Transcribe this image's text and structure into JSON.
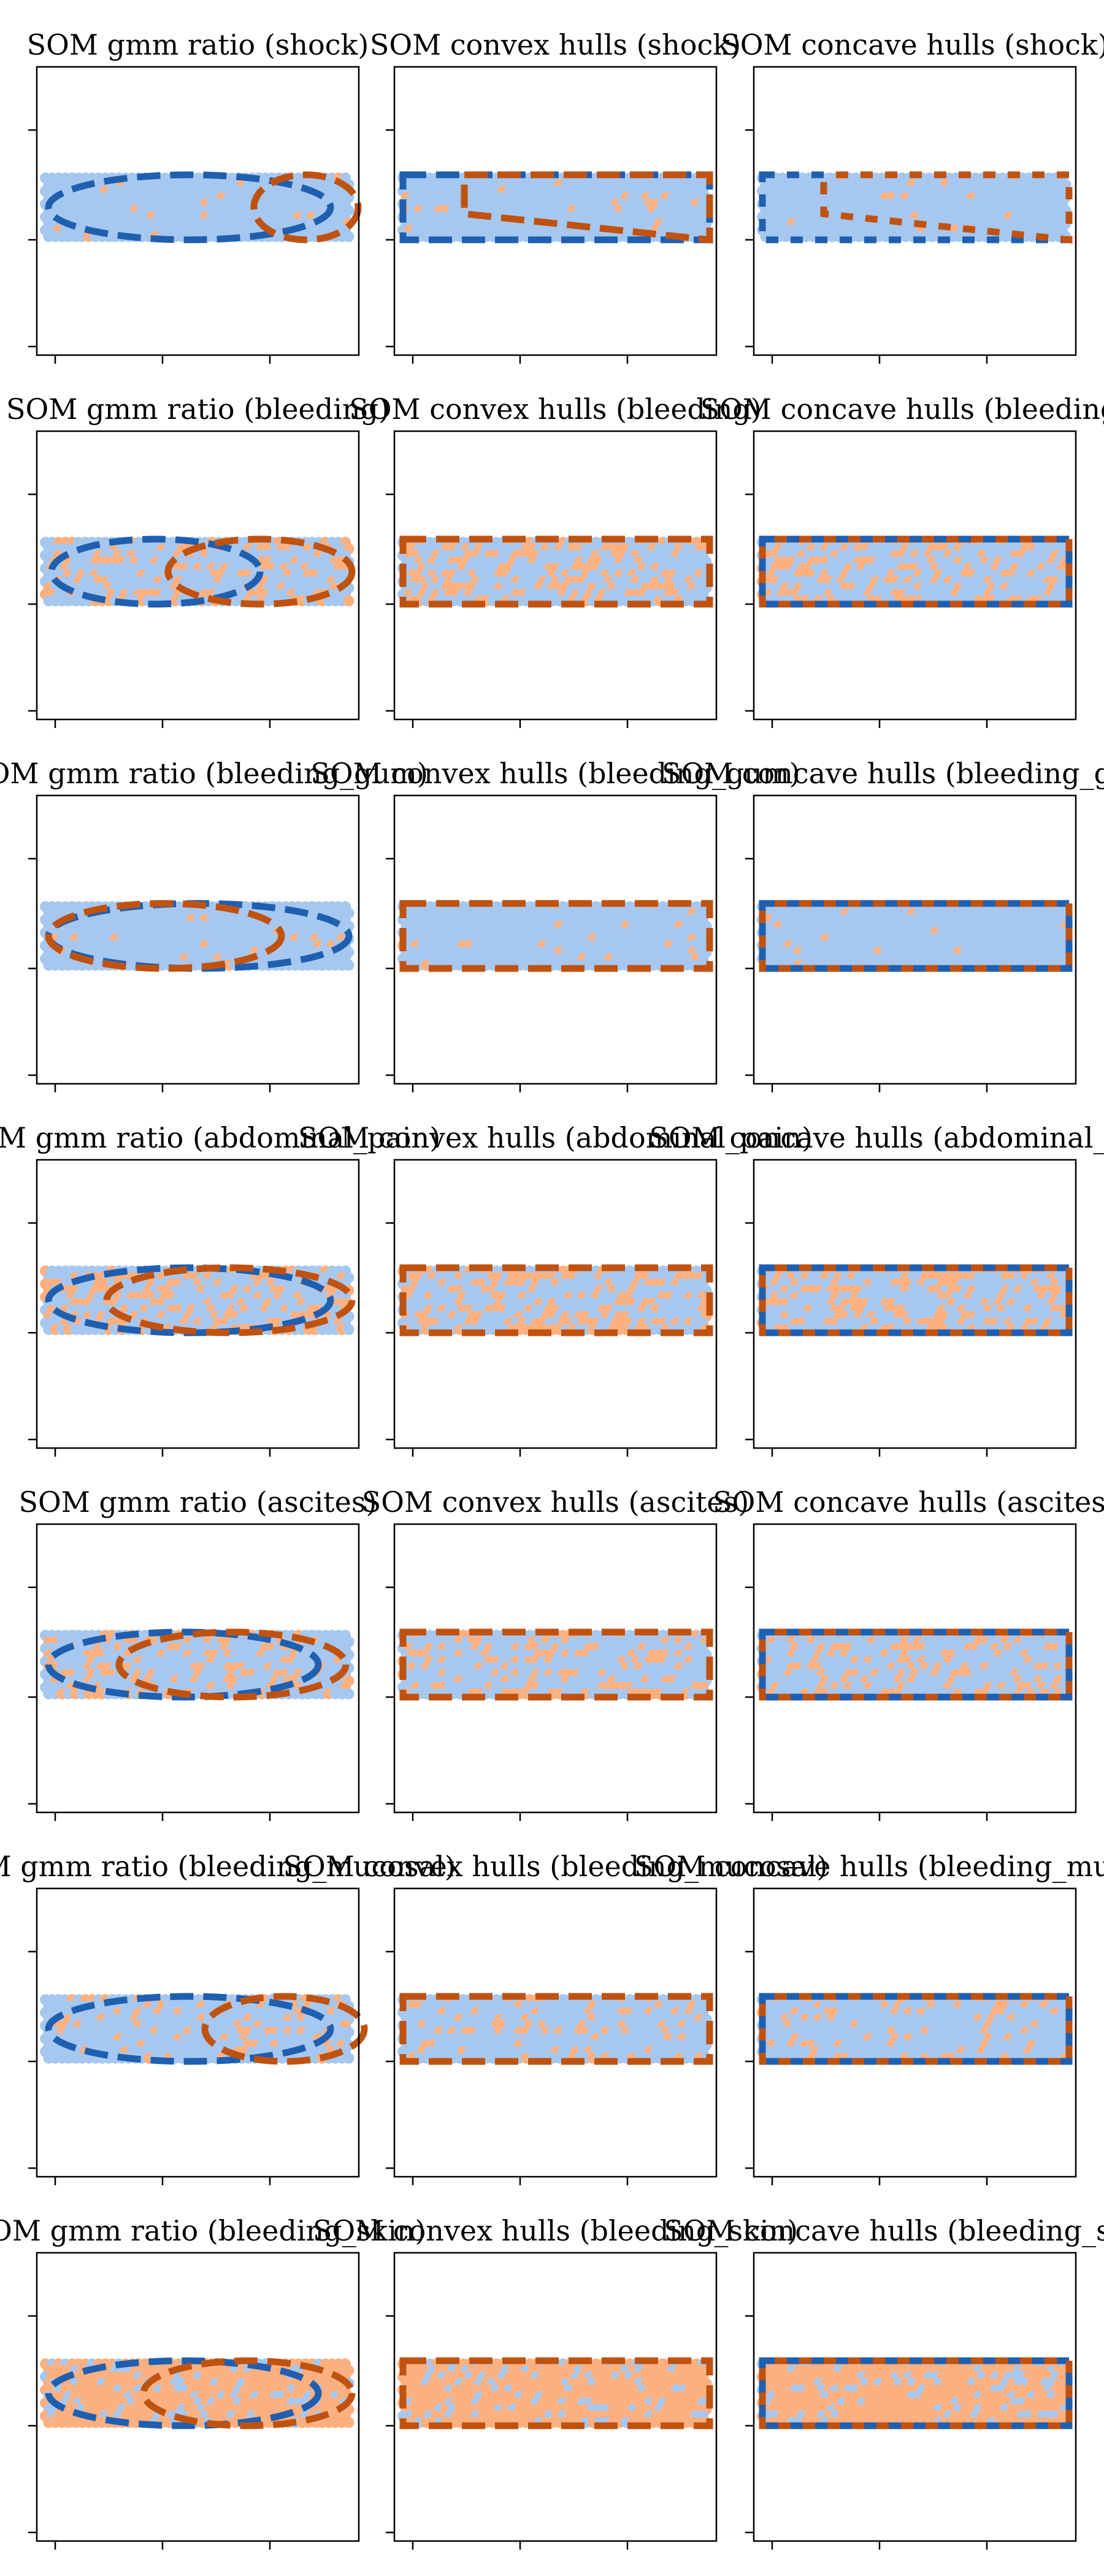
{
  "figure": {
    "rows": [
      "shock",
      "bleeding",
      "bleeding_gum",
      "abdominal_pain",
      "ascites",
      "bleeding_mucosal",
      "bleeding_skin"
    ],
    "column_types": [
      "SOM gmm ratio",
      "SOM convex hulls",
      "SOM concave hulls"
    ]
  },
  "colors": {
    "point_blue": "#a6c8f0",
    "point_orange": "#fdb07f",
    "hull_blue": "#1f5fb0",
    "hull_orange": "#c0520f",
    "frame": "#000000"
  },
  "chart_data": [
    {
      "type": "scatter",
      "method": "gmm_ratio",
      "feature": "shock",
      "title": "SOM gmm ratio (shock)",
      "dominant_points": "blue",
      "orange_point_share": 0.03,
      "ellipses": [
        {
          "series": "blue",
          "cx": 0.47,
          "cy": 0.5,
          "rx": 0.46,
          "ry": 0.5
        },
        {
          "series": "orange",
          "cx": 0.85,
          "cy": 0.5,
          "rx": 0.17,
          "ry": 0.5
        }
      ],
      "x_ticks": 3,
      "y_ticks": 2
    },
    {
      "type": "scatter",
      "method": "convex_hulls",
      "feature": "shock",
      "title": "SOM convex hulls (shock)",
      "dominant_points": "blue",
      "orange_point_share": 0.03,
      "blue_hull": [
        [
          0,
          0
        ],
        [
          1,
          0
        ],
        [
          1,
          1
        ],
        [
          0,
          1
        ]
      ],
      "orange_hull": [
        [
          0.2,
          0
        ],
        [
          1,
          0
        ],
        [
          1,
          1
        ],
        [
          0.2,
          0.6
        ]
      ],
      "x_ticks": 3,
      "y_ticks": 2
    },
    {
      "type": "scatter",
      "method": "concave_hulls",
      "feature": "shock",
      "title": "SOM concave hulls (shock)",
      "dominant_points": "blue",
      "orange_point_share": 0.03,
      "blue_hull": [
        [
          0,
          0
        ],
        [
          1,
          0
        ],
        [
          1,
          1
        ],
        [
          0,
          1
        ]
      ],
      "orange_hull": [
        [
          0.2,
          0
        ],
        [
          1,
          0
        ],
        [
          1,
          1
        ],
        [
          0.2,
          0.6
        ]
      ],
      "x_ticks": 3,
      "y_ticks": 2
    },
    {
      "type": "scatter",
      "method": "gmm_ratio",
      "feature": "bleeding",
      "title": "SOM gmm ratio (bleeding)",
      "dominant_points": "blue",
      "orange_point_share": 0.3,
      "ellipses": [
        {
          "series": "blue",
          "cx": 0.36,
          "cy": 0.5,
          "rx": 0.34,
          "ry": 0.5
        },
        {
          "series": "orange",
          "cx": 0.7,
          "cy": 0.5,
          "rx": 0.3,
          "ry": 0.5
        }
      ],
      "x_ticks": 3,
      "y_ticks": 2
    },
    {
      "type": "scatter",
      "method": "convex_hulls",
      "feature": "bleeding",
      "title": "SOM convex hulls (bleeding)",
      "dominant_points": "blue",
      "orange_point_share": 0.3,
      "blue_hull": [
        [
          0,
          0
        ],
        [
          1,
          0
        ],
        [
          1,
          1
        ],
        [
          0,
          1
        ]
      ],
      "orange_hull": [
        [
          0,
          0
        ],
        [
          1,
          0
        ],
        [
          1,
          1
        ],
        [
          0,
          1
        ]
      ],
      "x_ticks": 3,
      "y_ticks": 2
    },
    {
      "type": "scatter",
      "method": "concave_hulls",
      "feature": "bleeding",
      "title": "SOM concave hulls (bleeding)",
      "dominant_points": "blue",
      "orange_point_share": 0.3,
      "blue_hull": [
        [
          0,
          0
        ],
        [
          1,
          0
        ],
        [
          1,
          1
        ],
        [
          0,
          1
        ]
      ],
      "orange_hull": [
        [
          0,
          0
        ],
        [
          1,
          0
        ],
        [
          1,
          1
        ],
        [
          0,
          1
        ]
      ],
      "x_ticks": 3,
      "y_ticks": 2
    },
    {
      "type": "scatter",
      "method": "gmm_ratio",
      "feature": "bleeding_gum",
      "title": "SOM gmm ratio (bleeding_gum)",
      "dominant_points": "blue",
      "orange_point_share": 0.03,
      "ellipses": [
        {
          "series": "blue",
          "cx": 0.5,
          "cy": 0.5,
          "rx": 0.49,
          "ry": 0.5
        },
        {
          "series": "orange",
          "cx": 0.39,
          "cy": 0.5,
          "rx": 0.38,
          "ry": 0.5
        }
      ],
      "x_ticks": 3,
      "y_ticks": 2
    },
    {
      "type": "scatter",
      "method": "convex_hulls",
      "feature": "bleeding_gum",
      "title": "SOM convex hulls (bleeding_gum)",
      "dominant_points": "blue",
      "orange_point_share": 0.03,
      "blue_hull": [
        [
          0,
          0
        ],
        [
          1,
          0
        ],
        [
          1,
          1
        ],
        [
          0,
          1
        ]
      ],
      "orange_hull": [
        [
          0,
          0
        ],
        [
          1,
          0
        ],
        [
          1,
          1
        ],
        [
          0,
          1
        ]
      ],
      "x_ticks": 3,
      "y_ticks": 2
    },
    {
      "type": "scatter",
      "method": "concave_hulls",
      "feature": "bleeding_gum",
      "title": "SOM concave hulls (bleeding_gum)",
      "dominant_points": "blue",
      "orange_point_share": 0.03,
      "blue_hull": [
        [
          0,
          0
        ],
        [
          1,
          0
        ],
        [
          1,
          1
        ],
        [
          0,
          1
        ]
      ],
      "orange_hull": [
        [
          0,
          0
        ],
        [
          1,
          0
        ],
        [
          1,
          1
        ],
        [
          0,
          1
        ]
      ],
      "x_ticks": 3,
      "y_ticks": 2
    },
    {
      "type": "scatter",
      "method": "gmm_ratio",
      "feature": "abdominal_pain",
      "title": "SOM gmm ratio (abdominal_pain)",
      "dominant_points": "blue",
      "orange_point_share": 0.35,
      "ellipses": [
        {
          "series": "blue",
          "cx": 0.47,
          "cy": 0.5,
          "rx": 0.46,
          "ry": 0.5
        },
        {
          "series": "orange",
          "cx": 0.6,
          "cy": 0.5,
          "rx": 0.4,
          "ry": 0.5
        }
      ],
      "x_ticks": 3,
      "y_ticks": 2
    },
    {
      "type": "scatter",
      "method": "convex_hulls",
      "feature": "abdominal_pain",
      "title": "SOM convex hulls (abdominal_pain)",
      "dominant_points": "blue",
      "orange_point_share": 0.35,
      "blue_hull": [
        [
          0,
          0
        ],
        [
          1,
          0
        ],
        [
          1,
          1
        ],
        [
          0,
          1
        ]
      ],
      "orange_hull": [
        [
          0,
          0
        ],
        [
          1,
          0
        ],
        [
          1,
          1
        ],
        [
          0,
          1
        ]
      ],
      "x_ticks": 3,
      "y_ticks": 2
    },
    {
      "type": "scatter",
      "method": "concave_hulls",
      "feature": "abdominal_pain",
      "title": "SOM concave hulls (abdominal_pain)",
      "dominant_points": "blue",
      "orange_point_share": 0.35,
      "blue_hull": [
        [
          0,
          0
        ],
        [
          1,
          0
        ],
        [
          1,
          1
        ],
        [
          0,
          1
        ]
      ],
      "orange_hull": [
        [
          0,
          0
        ],
        [
          1,
          0
        ],
        [
          1,
          1
        ],
        [
          0,
          1
        ]
      ],
      "x_ticks": 3,
      "y_ticks": 2
    },
    {
      "type": "scatter",
      "method": "gmm_ratio",
      "feature": "ascites",
      "title": "SOM gmm ratio (ascites)",
      "dominant_points": "blue",
      "orange_point_share": 0.25,
      "ellipses": [
        {
          "series": "blue",
          "cx": 0.45,
          "cy": 0.5,
          "rx": 0.44,
          "ry": 0.5
        },
        {
          "series": "orange",
          "cx": 0.61,
          "cy": 0.5,
          "rx": 0.37,
          "ry": 0.5
        }
      ],
      "x_ticks": 3,
      "y_ticks": 2
    },
    {
      "type": "scatter",
      "method": "convex_hulls",
      "feature": "ascites",
      "title": "SOM convex hulls (ascites)",
      "dominant_points": "blue",
      "orange_point_share": 0.25,
      "blue_hull": [
        [
          0,
          0
        ],
        [
          1,
          0
        ],
        [
          1,
          1
        ],
        [
          0,
          1
        ]
      ],
      "orange_hull": [
        [
          0,
          0
        ],
        [
          1,
          0
        ],
        [
          1,
          1
        ],
        [
          0,
          1
        ]
      ],
      "x_ticks": 3,
      "y_ticks": 2
    },
    {
      "type": "scatter",
      "method": "concave_hulls",
      "feature": "ascites",
      "title": "SOM concave hulls (ascites)",
      "dominant_points": "blue",
      "orange_point_share": 0.25,
      "blue_hull": [
        [
          0,
          0
        ],
        [
          1,
          0
        ],
        [
          1,
          1
        ],
        [
          0,
          1
        ]
      ],
      "orange_hull": [
        [
          0,
          0
        ],
        [
          1,
          0
        ],
        [
          1,
          1
        ],
        [
          0,
          1
        ]
      ],
      "x_ticks": 3,
      "y_ticks": 2
    },
    {
      "type": "scatter",
      "method": "gmm_ratio",
      "feature": "bleeding_mucosal",
      "title": "SOM gmm ratio (bleeding_mucosal)",
      "dominant_points": "blue",
      "orange_point_share": 0.15,
      "ellipses": [
        {
          "series": "blue",
          "cx": 0.47,
          "cy": 0.5,
          "rx": 0.46,
          "ry": 0.5
        },
        {
          "series": "orange",
          "cx": 0.78,
          "cy": 0.5,
          "rx": 0.26,
          "ry": 0.5
        }
      ],
      "x_ticks": 3,
      "y_ticks": 2
    },
    {
      "type": "scatter",
      "method": "convex_hulls",
      "feature": "bleeding_mucosal",
      "title": "SOM convex hulls (bleeding_mucosal)",
      "dominant_points": "blue",
      "orange_point_share": 0.15,
      "blue_hull": [
        [
          0,
          0
        ],
        [
          1,
          0
        ],
        [
          1,
          1
        ],
        [
          0,
          1
        ]
      ],
      "orange_hull": [
        [
          0,
          0
        ],
        [
          1,
          0
        ],
        [
          1,
          1
        ],
        [
          0,
          1
        ]
      ],
      "x_ticks": 3,
      "y_ticks": 2
    },
    {
      "type": "scatter",
      "method": "concave_hulls",
      "feature": "bleeding_mucosal",
      "title": "SOM concave hulls (bleeding_mucosal)",
      "dominant_points": "blue",
      "orange_point_share": 0.15,
      "blue_hull": [
        [
          0,
          0
        ],
        [
          1,
          0
        ],
        [
          1,
          1
        ],
        [
          0,
          1
        ]
      ],
      "orange_hull": [
        [
          0,
          0
        ],
        [
          1,
          0
        ],
        [
          1,
          1
        ],
        [
          0,
          1
        ]
      ],
      "x_ticks": 3,
      "y_ticks": 2
    },
    {
      "type": "scatter",
      "method": "gmm_ratio",
      "feature": "bleeding_skin",
      "title": "SOM gmm ratio (bleeding_skin)",
      "dominant_points": "orange",
      "orange_point_share": 0.8,
      "ellipses": [
        {
          "series": "blue",
          "cx": 0.45,
          "cy": 0.5,
          "rx": 0.44,
          "ry": 0.5
        },
        {
          "series": "orange",
          "cx": 0.66,
          "cy": 0.5,
          "rx": 0.34,
          "ry": 0.5
        }
      ],
      "x_ticks": 3,
      "y_ticks": 2
    },
    {
      "type": "scatter",
      "method": "convex_hulls",
      "feature": "bleeding_skin",
      "title": "SOM convex hulls (bleeding_skin)",
      "dominant_points": "orange",
      "orange_point_share": 0.8,
      "blue_hull": [
        [
          0,
          0
        ],
        [
          1,
          0
        ],
        [
          1,
          1
        ],
        [
          0,
          1
        ]
      ],
      "orange_hull": [
        [
          0,
          0
        ],
        [
          1,
          0
        ],
        [
          1,
          1
        ],
        [
          0,
          1
        ]
      ],
      "x_ticks": 3,
      "y_ticks": 2
    },
    {
      "type": "scatter",
      "method": "concave_hulls",
      "feature": "bleeding_skin",
      "title": "SOM concave hulls (bleeding_skin)",
      "dominant_points": "orange",
      "orange_point_share": 0.8,
      "blue_hull": [
        [
          0,
          0
        ],
        [
          1,
          0
        ],
        [
          1,
          1
        ],
        [
          0,
          1
        ]
      ],
      "orange_hull": [
        [
          0,
          0
        ],
        [
          1,
          0
        ],
        [
          1,
          1
        ],
        [
          0,
          1
        ]
      ],
      "x_ticks": 3,
      "y_ticks": 2
    }
  ]
}
